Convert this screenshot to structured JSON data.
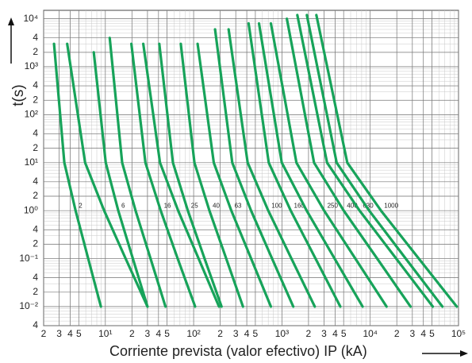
{
  "chart_data": {
    "type": "line",
    "xlabel": "Corriente prevista (valor efectivo) IP (kA)",
    "ylabel": "t(s)",
    "xscale": "log",
    "yscale": "log",
    "grid": true,
    "color": "#17a35a",
    "xlim": [
      2,
      100000
    ],
    "ylim": [
      0.004,
      15000
    ],
    "xticks": [
      2,
      3,
      4,
      5,
      {
        "value": 10,
        "label": "10¹"
      },
      {
        "value": 20,
        "label": "2"
      },
      {
        "value": 30,
        "label": "3"
      },
      {
        "value": 40,
        "label": "4"
      },
      {
        "value": 50,
        "label": "5"
      },
      {
        "value": 100,
        "label": "10²"
      },
      {
        "value": 200,
        "label": "2"
      },
      {
        "value": 300,
        "label": "3"
      },
      {
        "value": 400,
        "label": "4"
      },
      {
        "value": 500,
        "label": "5"
      },
      {
        "value": 1000,
        "label": "10³"
      },
      {
        "value": 2000,
        "label": "2"
      },
      {
        "value": 3000,
        "label": "3"
      },
      {
        "value": 4000,
        "label": "4"
      },
      {
        "value": 5000,
        "label": "5"
      },
      {
        "value": 10000,
        "label": "10⁴"
      },
      {
        "value": 20000,
        "label": "2"
      },
      {
        "value": 30000,
        "label": "3"
      },
      {
        "value": 40000,
        "label": "4"
      },
      {
        "value": 50000,
        "label": "5"
      },
      {
        "value": 100000,
        "label": "10⁵"
      }
    ],
    "yticks": [
      {
        "value": 10000,
        "label": "10⁴"
      },
      {
        "value": 4000,
        "label": "4"
      },
      {
        "value": 2000,
        "label": "2"
      },
      {
        "value": 1000,
        "label": "10³"
      },
      {
        "value": 400,
        "label": "4"
      },
      {
        "value": 200,
        "label": "2"
      },
      {
        "value": 100,
        "label": "10²"
      },
      {
        "value": 40,
        "label": "4"
      },
      {
        "value": 20,
        "label": "2"
      },
      {
        "value": 10,
        "label": "10¹"
      },
      4,
      2,
      {
        "value": 1,
        "label": "10⁰"
      },
      {
        "value": 0.4,
        "label": "4"
      },
      {
        "value": 0.2,
        "label": "2"
      },
      {
        "value": 0.1,
        "label": "10⁻¹"
      },
      {
        "value": 0.04,
        "label": "4"
      },
      {
        "value": 0.02,
        "label": "2"
      },
      {
        "value": 0.01,
        "label": "10⁻²"
      },
      {
        "value": 0.004,
        "label": "4"
      }
    ],
    "series": [
      {
        "name": "2",
        "x": [
          2.62,
          3.43,
          4.6,
          6.4,
          8.9
        ],
        "values": [
          3000,
          10,
          1,
          0.1,
          0.01
        ]
      },
      {
        "x": [
          3.7,
          5.9,
          9.7,
          17,
          30
        ],
        "values": [
          3000,
          10,
          1,
          0.1,
          0.01
        ]
      },
      {
        "name": "6",
        "x": [
          7.4,
          10.1,
          14,
          20.5,
          30
        ],
        "values": [
          2000,
          10,
          1,
          0.1,
          0.01
        ]
      },
      {
        "x": [
          11.2,
          15.5,
          22,
          32.5,
          48
        ],
        "values": [
          4000,
          10,
          1,
          0.1,
          0.01
        ]
      },
      {
        "name": "16",
        "x": [
          19.7,
          28.4,
          42.4,
          66,
          104
        ],
        "values": [
          3000,
          10,
          1,
          0.1,
          0.01
        ]
      },
      {
        "x": [
          26.9,
          41.6,
          66.8,
          114,
          194
        ],
        "values": [
          3000,
          10,
          1,
          0.1,
          0.01
        ]
      },
      {
        "name": "25",
        "x": [
          40.8,
          58.3,
          86,
          133,
          207
        ],
        "values": [
          3000,
          10,
          1,
          0.1,
          0.01
        ]
      },
      {
        "name": "40",
        "x": [
          71.6,
          102,
          151,
          234,
          362
        ],
        "values": [
          3000,
          10,
          1,
          0.1,
          0.01
        ]
      },
      {
        "name": "63",
        "x": [
          111,
          169,
          267,
          448,
          750
        ],
        "values": [
          3000,
          10,
          1,
          0.1,
          0.01
        ]
      },
      {
        "x": [
          175,
          274,
          447,
          774,
          1343
        ],
        "values": [
          6000,
          10,
          1,
          0.1,
          0.01
        ]
      },
      {
        "name": "100",
        "x": [
          249,
          409,
          701,
          1283,
          2355
        ],
        "values": [
          6000,
          10,
          1,
          0.1,
          0.01
        ]
      },
      {
        "name": "160",
        "x": [
          419,
          710,
          1259,
          2404,
          4581
        ],
        "values": [
          8000,
          10,
          1,
          0.1,
          0.01
        ]
      },
      {
        "x": [
          550,
          995,
          1905,
          3954,
          8204
        ],
        "values": [
          8000,
          10,
          1,
          0.1,
          0.01
        ]
      },
      {
        "name": "250",
        "x": [
          750,
          1459,
          3006,
          6792,
          15310
        ],
        "values": [
          8000,
          10,
          1,
          0.1,
          0.01
        ]
      },
      {
        "name": "400",
        "x": [
          1138,
          2312,
          5012,
          11990,
          28580
        ],
        "values": [
          10000,
          10,
          1,
          0.1,
          0.01
        ]
      },
      {
        "name": "630",
        "x": [
          1493,
          3243,
          7586,
          19720,
          51170
        ],
        "values": [
          12000,
          10,
          1,
          0.1,
          0.01
        ]
      },
      {
        "x": [
          1914,
          4169,
          9727,
          25290,
          65770
        ],
        "values": [
          12000,
          10,
          1,
          0.1,
          0.01
        ]
      },
      {
        "name": "1000",
        "x": [
          2455,
          5495,
          13240,
          35560,
          95500
        ],
        "values": [
          12000,
          10,
          1,
          0.1,
          0.01
        ]
      }
    ]
  }
}
